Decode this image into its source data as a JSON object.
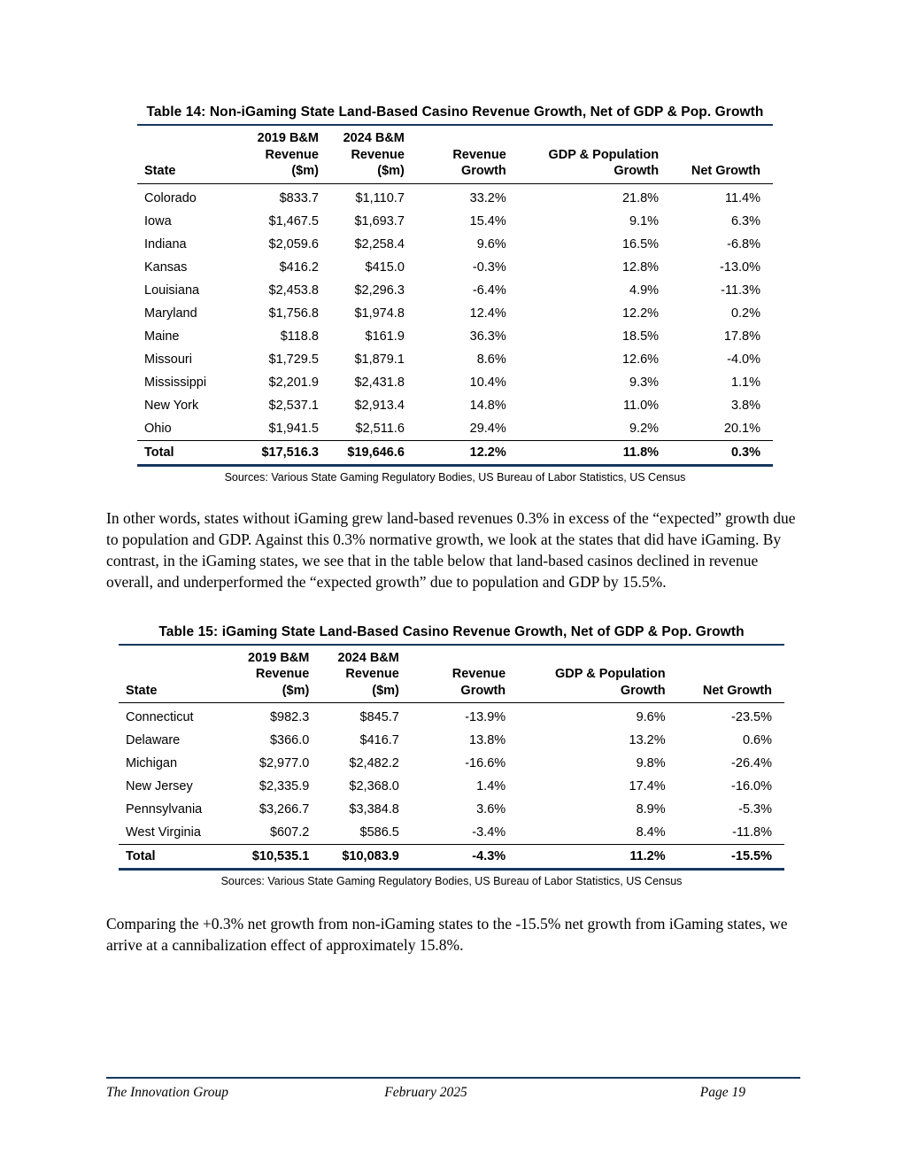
{
  "colors": {
    "rule": "#17375E"
  },
  "table14": {
    "title": "Table 14: Non-iGaming State Land-Based Casino Revenue Growth, Net of GDP & Pop. Growth",
    "headers": [
      "State",
      "2019 B&M\nRevenue\n($m)",
      "2024 B&M\nRevenue\n($m)",
      "Revenue\nGrowth",
      "GDP & Population\nGrowth",
      "Net Growth"
    ],
    "rows": [
      [
        "Colorado",
        "$833.7",
        "$1,110.7",
        "33.2%",
        "21.8%",
        "11.4%"
      ],
      [
        "Iowa",
        "$1,467.5",
        "$1,693.7",
        "15.4%",
        "9.1%",
        "6.3%"
      ],
      [
        "Indiana",
        "$2,059.6",
        "$2,258.4",
        "9.6%",
        "16.5%",
        "-6.8%"
      ],
      [
        "Kansas",
        "$416.2",
        "$415.0",
        "-0.3%",
        "12.8%",
        "-13.0%"
      ],
      [
        "Louisiana",
        "$2,453.8",
        "$2,296.3",
        "-6.4%",
        "4.9%",
        "-11.3%"
      ],
      [
        "Maryland",
        "$1,756.8",
        "$1,974.8",
        "12.4%",
        "12.2%",
        "0.2%"
      ],
      [
        "Maine",
        "$118.8",
        "$161.9",
        "36.3%",
        "18.5%",
        "17.8%"
      ],
      [
        "Missouri",
        "$1,729.5",
        "$1,879.1",
        "8.6%",
        "12.6%",
        "-4.0%"
      ],
      [
        "Mississippi",
        "$2,201.9",
        "$2,431.8",
        "10.4%",
        "9.3%",
        "1.1%"
      ],
      [
        "New York",
        "$2,537.1",
        "$2,913.4",
        "14.8%",
        "11.0%",
        "3.8%"
      ],
      [
        "Ohio",
        "$1,941.5",
        "$2,511.6",
        "29.4%",
        "9.2%",
        "20.1%"
      ]
    ],
    "total": [
      "Total",
      "$17,516.3",
      "$19,646.6",
      "12.2%",
      "11.8%",
      "0.3%"
    ],
    "source": "Sources: Various State Gaming Regulatory Bodies, US Bureau of Labor Statistics, US Census"
  },
  "paragraphs": {
    "p1": "In other words, states without iGaming grew land-based revenues 0.3% in excess of the “expected” growth due to population and GDP. Against this 0.3% normative growth, we look at the states that did have iGaming. By contrast, in the iGaming states, we see that in the table below that land-based casinos declined in revenue overall, and underperformed the “expected growth” due to population and GDP by 15.5%.",
    "p2": "Comparing the +0.3% net growth from non-iGaming states to the -15.5% net growth from iGaming states, we arrive at a cannibalization effect of approximately 15.8%."
  },
  "table15": {
    "title": "Table 15: iGaming State Land-Based Casino Revenue Growth, Net of GDP & Pop. Growth",
    "headers": [
      "State",
      "2019 B&M\nRevenue\n($m)",
      "2024 B&M\nRevenue\n($m)",
      "Revenue\nGrowth",
      "GDP & Population\nGrowth",
      "Net Growth"
    ],
    "rows": [
      [
        "Connecticut",
        "$982.3",
        "$845.7",
        "-13.9%",
        "9.6%",
        "-23.5%"
      ],
      [
        "Delaware",
        "$366.0",
        "$416.7",
        "13.8%",
        "13.2%",
        "0.6%"
      ],
      [
        "Michigan",
        "$2,977.0",
        "$2,482.2",
        "-16.6%",
        "9.8%",
        "-26.4%"
      ],
      [
        "New Jersey",
        "$2,335.9",
        "$2,368.0",
        "1.4%",
        "17.4%",
        "-16.0%"
      ],
      [
        "Pennsylvania",
        "$3,266.7",
        "$3,384.8",
        "3.6%",
        "8.9%",
        "-5.3%"
      ],
      [
        "West Virginia",
        "$607.2",
        "$586.5",
        "-3.4%",
        "8.4%",
        "-11.8%"
      ]
    ],
    "total": [
      "Total",
      "$10,535.1",
      "$10,083.9",
      "-4.3%",
      "11.2%",
      "-15.5%"
    ],
    "source": "Sources: Various State Gaming Regulatory Bodies, US Bureau of Labor Statistics, US Census"
  },
  "footer": {
    "left": "The Innovation Group",
    "center": "February 2025",
    "right": "Page 19"
  }
}
